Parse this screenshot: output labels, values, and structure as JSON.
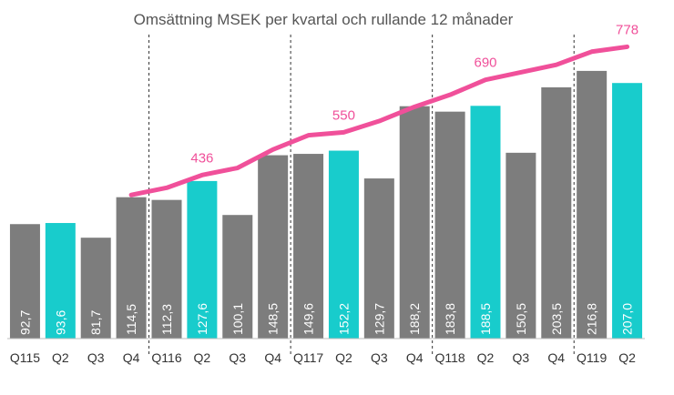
{
  "chart_data": {
    "type": "bar",
    "title": "Omsättning MSEK per kvartal och rullande 12 månader",
    "categories": [
      "Q115",
      "Q2",
      "Q3",
      "Q4",
      "Q116",
      "Q2",
      "Q3",
      "Q4",
      "Q117",
      "Q2",
      "Q3",
      "Q4",
      "Q118",
      "Q2",
      "Q3",
      "Q4",
      "Q119",
      "Q2"
    ],
    "values": [
      92.7,
      93.6,
      81.7,
      114.5,
      112.3,
      127.6,
      100.1,
      148.5,
      149.6,
      152.2,
      129.7,
      188.2,
      183.8,
      188.5,
      150.5,
      203.5,
      216.8,
      207.0
    ],
    "value_labels": [
      "92,7",
      "93,6",
      "81,7",
      "114,5",
      "112,3",
      "127,6",
      "100,1",
      "148,5",
      "149,6",
      "152,2",
      "129,7",
      "188,2",
      "183,8",
      "188,5",
      "150,5",
      "203,5",
      "216,8",
      "207,0"
    ],
    "highlight_q2": [
      false,
      true,
      false,
      false,
      false,
      true,
      false,
      false,
      false,
      true,
      false,
      false,
      false,
      true,
      false,
      false,
      false,
      true
    ],
    "rolling_12m": {
      "name": "Rullande 12 månader",
      "start_index": 3,
      "values": [
        383,
        402,
        436,
        455,
        504,
        542,
        550,
        580,
        618,
        650,
        690,
        710,
        730,
        765,
        778
      ],
      "labels": [
        {
          "index": 5,
          "text": "436"
        },
        {
          "index": 9,
          "text": "550"
        },
        {
          "index": 13,
          "text": "690"
        },
        {
          "index": 17,
          "text": "778"
        }
      ]
    },
    "ylim": [
      0,
      230
    ],
    "line_ylim": [
      0,
      830
    ],
    "year_dividers_after": [
      3,
      7,
      11,
      15
    ],
    "xlabel": "",
    "ylabel": "",
    "grid": false,
    "colors": {
      "bar_default": "#7d7d7d",
      "bar_highlight": "#18cccc",
      "line": "#f0509a",
      "divider": "#333333"
    }
  }
}
